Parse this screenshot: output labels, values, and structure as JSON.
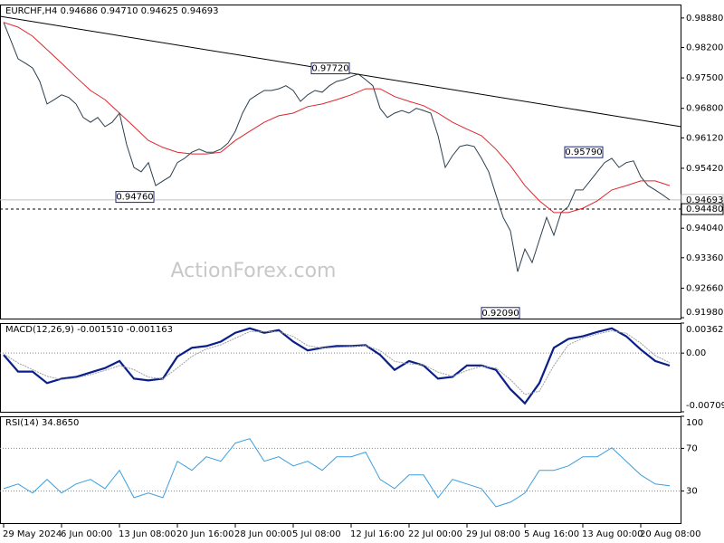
{
  "chart_data": [
    {
      "type": "line",
      "title": "EURCHF,H4  0.94686 0.94710 0.94625 0.94693",
      "watermark": "ActionForex.com",
      "xlim": [
        -1,
        187
      ],
      "xticks": [
        {
          "value": 0,
          "label": "29 May 2024"
        },
        {
          "value": 16,
          "label": "6 Jun 00:00"
        },
        {
          "value": 32,
          "label": "13 Jun 08:00"
        },
        {
          "value": 48,
          "label": "20 Jun 16:00"
        },
        {
          "value": 64,
          "label": "28 Jun 00:00"
        },
        {
          "value": 80,
          "label": "5 Jul 08:00"
        },
        {
          "value": 96,
          "label": "12 Jul 16:00"
        },
        {
          "value": 112,
          "label": "22 Jul 00:00"
        },
        {
          "value": 128,
          "label": "29 Jul 08:00"
        },
        {
          "value": 144,
          "label": "5 Aug 16:00"
        },
        {
          "value": 160,
          "label": "13 Aug 00:00"
        },
        {
          "value": 176,
          "label": "20 Aug 08:00"
        }
      ],
      "ylim": [
        0.9196,
        0.9919
      ],
      "yticks": [
        {
          "value": 0.9888,
          "label": "0.98880"
        },
        {
          "value": 0.982,
          "label": "0.98200"
        },
        {
          "value": 0.975,
          "label": "0.97500"
        },
        {
          "value": 0.968,
          "label": "0.96800"
        },
        {
          "value": 0.9612,
          "label": "0.96120"
        },
        {
          "value": 0.9542,
          "label": "0.95420"
        },
        {
          "value": 0.9404,
          "label": "0.94040"
        },
        {
          "value": 0.9336,
          "label": "0.93360"
        },
        {
          "value": 0.9266,
          "label": "0.92660"
        },
        {
          "value": 0.9198,
          "label": "0.91980"
        }
      ],
      "series": [
        {
          "color": "#2b3f4f",
          "x": [
            0,
            2,
            4,
            6,
            8,
            10,
            12,
            14,
            16,
            18,
            20,
            22,
            24,
            26,
            28,
            30,
            32,
            34,
            36,
            38,
            40,
            42,
            44,
            46,
            48,
            50,
            52,
            54,
            56,
            58,
            60,
            62,
            64,
            66,
            68,
            70,
            72,
            74,
            76,
            78,
            80,
            82,
            84,
            86,
            88,
            90,
            92,
            94,
            96,
            98,
            100,
            102,
            104,
            106,
            108,
            110,
            112,
            114,
            116,
            118,
            120,
            122,
            124,
            126,
            128,
            130,
            132,
            134,
            136,
            138,
            140,
            142,
            144,
            146,
            148,
            150,
            152,
            154,
            156,
            158,
            160,
            162,
            164,
            166,
            168,
            170,
            172,
            174,
            176,
            178,
            180,
            182,
            184
          ],
          "values": [
            0.9878,
            0.9836,
            0.9794,
            0.9784,
            0.9773,
            0.9742,
            0.969,
            0.97,
            0.9711,
            0.9705,
            0.969,
            0.9659,
            0.9648,
            0.9659,
            0.9638,
            0.9648,
            0.9669,
            0.9596,
            0.9544,
            0.9534,
            0.9555,
            0.9502,
            0.9513,
            0.9523,
            0.9555,
            0.9565,
            0.9579,
            0.9586,
            0.9579,
            0.9579,
            0.9586,
            0.96,
            0.9627,
            0.9669,
            0.97,
            0.9711,
            0.9721,
            0.9721,
            0.9725,
            0.9732,
            0.9721,
            0.9696,
            0.9711,
            0.9721,
            0.9717,
            0.9732,
            0.9742,
            0.9746,
            0.9753,
            0.9759,
            0.9746,
            0.9732,
            0.968,
            0.9659,
            0.9669,
            0.9675,
            0.9669,
            0.968,
            0.9675,
            0.9669,
            0.9617,
            0.9544,
            0.9571,
            0.9592,
            0.9596,
            0.9592,
            0.9565,
            0.9534,
            0.9481,
            0.9429,
            0.9398,
            0.9304,
            0.9356,
            0.9325,
            0.9377,
            0.9429,
            0.9388,
            0.944,
            0.9454,
            0.9492,
            0.9492,
            0.9513,
            0.9534,
            0.9555,
            0.9565,
            0.9544,
            0.9555,
            0.9559,
            0.9523,
            0.9502,
            0.9492,
            0.9481,
            0.9469
          ]
        },
        {
          "color": "#e0252b",
          "x": [
            0,
            4,
            8,
            12,
            16,
            20,
            24,
            28,
            32,
            36,
            40,
            44,
            48,
            52,
            56,
            60,
            64,
            68,
            72,
            76,
            80,
            84,
            88,
            92,
            96,
            100,
            104,
            108,
            112,
            116,
            120,
            124,
            128,
            132,
            136,
            140,
            144,
            148,
            152,
            156,
            160,
            164,
            168,
            172,
            176,
            180,
            184
          ],
          "values": [
            0.9878,
            0.9867,
            0.9846,
            0.9815,
            0.9784,
            0.9752,
            0.9721,
            0.97,
            0.9669,
            0.9638,
            0.9606,
            0.959,
            0.9579,
            0.9575,
            0.9575,
            0.9579,
            0.9606,
            0.9627,
            0.9648,
            0.9663,
            0.9669,
            0.9684,
            0.969,
            0.97,
            0.9711,
            0.9725,
            0.9725,
            0.9707,
            0.9696,
            0.9686,
            0.9669,
            0.9648,
            0.9632,
            0.9617,
            0.9586,
            0.9548,
            0.9502,
            0.9467,
            0.944,
            0.944,
            0.945,
            0.9467,
            0.9492,
            0.9502,
            0.9513,
            0.9513,
            0.9502
          ]
        },
        {
          "color": "#000000",
          "x": [
            -1,
            187
          ],
          "values": [
            0.9892,
            0.9638
          ]
        }
      ],
      "annotations": [
        {
          "x": 96,
          "value": 0.9772,
          "label": "0.97720"
        },
        {
          "x": 42,
          "value": 0.9476,
          "label": "0.94760"
        },
        {
          "x": 143,
          "value": 0.9209,
          "label": "0.92090"
        },
        {
          "x": 166,
          "value": 0.9579,
          "label": "0.95790"
        }
      ],
      "last_price": {
        "value": 0.94693,
        "label": "0.94693"
      },
      "level": {
        "value": 0.9448,
        "label": "0.94480"
      }
    },
    {
      "type": "line",
      "title": "MACD(12,26,9) -0.001510 -0.001163",
      "xlim": [
        -1,
        187
      ],
      "ylim": [
        -0.007093,
        0.003628
      ],
      "yticks": [
        0.003628,
        {
          "value": 0,
          "label": "0.00"
        },
        -0.007093
      ],
      "series": [
        {
          "color": "#0b1f8a",
          "x": [
            0,
            4,
            8,
            12,
            16,
            20,
            24,
            28,
            32,
            36,
            40,
            44,
            48,
            52,
            56,
            60,
            64,
            68,
            72,
            76,
            80,
            84,
            88,
            92,
            96,
            100,
            104,
            108,
            112,
            116,
            120,
            124,
            128,
            132,
            136,
            140,
            144,
            148,
            152,
            156,
            160,
            164,
            168,
            172,
            176,
            180,
            184
          ],
          "values": [
            -0.00021,
            -0.00224,
            -0.00224,
            -0.00363,
            -0.00309,
            -0.00288,
            -0.00235,
            -0.00181,
            -0.00096,
            -0.00309,
            -0.00331,
            -0.00309,
            -0.00043,
            0.00064,
            0.00085,
            0.00139,
            0.00246,
            0.00299,
            0.00246,
            0.00277,
            0.00139,
            0.00032,
            0.00064,
            0.00085,
            0.00085,
            0.00096,
            -0.00021,
            -0.00203,
            -0.00096,
            -0.00149,
            -0.00309,
            -0.00288,
            -0.00149,
            -0.00149,
            -0.00203,
            -0.00437,
            -0.00608,
            -0.00363,
            0.00064,
            0.00171,
            0.00203,
            0.00256,
            0.00299,
            0.00203,
            0.00043,
            -0.00096,
            -0.00151
          ]
        },
        {
          "color": "#a0a0a0",
          "x": [
            0,
            4,
            8,
            12,
            16,
            20,
            24,
            28,
            32,
            36,
            40,
            44,
            48,
            52,
            56,
            60,
            64,
            68,
            72,
            76,
            80,
            84,
            88,
            92,
            96,
            100,
            104,
            108,
            112,
            116,
            120,
            124,
            128,
            132,
            136,
            140,
            144,
            148,
            152,
            156,
            160,
            164,
            168,
            172,
            176,
            180,
            184
          ],
          "values": [
            -0.0001,
            -0.0012,
            -0.002,
            -0.0028,
            -0.0032,
            -0.003,
            -0.0026,
            -0.0021,
            -0.0015,
            -0.002,
            -0.0029,
            -0.0031,
            -0.0018,
            -0.0004,
            0.0005,
            0.001,
            0.0018,
            0.0026,
            0.0026,
            0.0026,
            0.002,
            0.0009,
            0.0006,
            0.0007,
            0.0008,
            0.0009,
            0.0003,
            -0.001,
            -0.0013,
            -0.0014,
            -0.0023,
            -0.0028,
            -0.0021,
            -0.0016,
            -0.0018,
            -0.0032,
            -0.005,
            -0.0046,
            -0.0015,
            0.001,
            0.0018,
            0.0023,
            0.0027,
            0.0024,
            0.0012,
            -0.0003,
            -0.001163
          ]
        }
      ]
    },
    {
      "type": "line",
      "title": "RSI(14) 34.8650",
      "xlim": [
        -1,
        187
      ],
      "ylim": [
        0,
        100
      ],
      "yticks": [
        100,
        70,
        30
      ],
      "series": [
        {
          "color": "#3a9fe0",
          "x": [
            0,
            4,
            8,
            12,
            16,
            20,
            24,
            28,
            32,
            36,
            40,
            44,
            48,
            52,
            56,
            60,
            64,
            68,
            72,
            76,
            80,
            84,
            88,
            92,
            96,
            100,
            104,
            108,
            112,
            116,
            120,
            124,
            128,
            132,
            136,
            140,
            144,
            148,
            152,
            156,
            160,
            164,
            168,
            172,
            176,
            180,
            184
          ],
          "values": [
            32.3,
            36.6,
            28.1,
            40.9,
            28.1,
            36.6,
            40.9,
            32.3,
            49.4,
            23.8,
            28.1,
            23.8,
            57.9,
            49.4,
            62.1,
            57.9,
            74.9,
            79.1,
            57.9,
            62.1,
            53.6,
            57.9,
            49.4,
            62.1,
            62.1,
            66.4,
            40.9,
            32.3,
            45.1,
            45.1,
            23.8,
            40.9,
            36.6,
            32.3,
            15.3,
            19.6,
            28.1,
            49.4,
            49.4,
            53.6,
            62.1,
            62.1,
            70.6,
            57.9,
            45.1,
            36.6,
            34.9
          ]
        }
      ]
    }
  ]
}
